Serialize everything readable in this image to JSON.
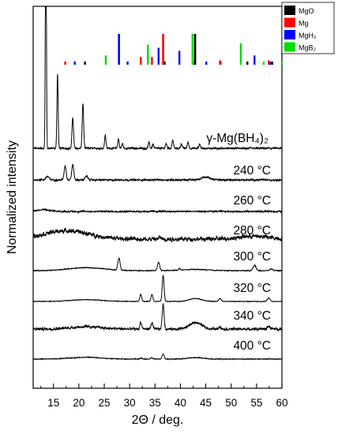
{
  "chart_data": {
    "type": "line",
    "xlabel": "2Θ / deg.",
    "ylabel": "Normalized intensity",
    "xlim": [
      11,
      60
    ],
    "xticks": [
      15,
      20,
      25,
      30,
      35,
      40,
      45,
      50,
      55,
      60
    ],
    "yticks": "none",
    "grid": false,
    "legend": {
      "placement": "top-right",
      "entries": [
        {
          "label": "MgO",
          "color": "#000000"
        },
        {
          "label": "Mg",
          "color": "#ff0000"
        },
        {
          "label": "MgH₂",
          "color": "#0000ff"
        },
        {
          "label": "MgB₂",
          "color": "#00dd00"
        }
      ]
    },
    "reference_peaks": [
      {
        "name": "MgO",
        "color": "#000000",
        "peaks": [
          [
            21.2,
            0.08
          ],
          [
            36.9,
            0.1
          ],
          [
            42.9,
            1.0
          ],
          [
            47.9,
            0.08
          ],
          [
            53.2,
            0.06
          ],
          [
            57.8,
            0.06
          ],
          [
            58.1,
            0.06
          ]
        ]
      },
      {
        "name": "Mg",
        "color": "#ff0000",
        "peaks": [
          [
            17.3,
            0.08
          ],
          [
            32.2,
            0.25
          ],
          [
            34.4,
            0.25
          ],
          [
            36.6,
            1.0
          ],
          [
            47.8,
            0.14
          ],
          [
            57.4,
            0.14
          ]
        ]
      },
      {
        "name": "MgH₂",
        "color": "#0000ff",
        "peaks": [
          [
            19.2,
            0.08
          ],
          [
            27.9,
            1.0
          ],
          [
            29.6,
            0.1
          ],
          [
            35.7,
            0.55
          ],
          [
            39.8,
            0.45
          ],
          [
            42.5,
            0.1
          ],
          [
            45.1,
            0.08
          ],
          [
            54.6,
            0.3
          ],
          [
            57.9,
            0.08
          ]
        ]
      },
      {
        "name": "MgB₂",
        "color": "#00dd00",
        "peaks": [
          [
            25.3,
            0.3
          ],
          [
            33.6,
            0.65
          ],
          [
            42.4,
            1.0
          ],
          [
            51.9,
            0.7
          ],
          [
            56.4,
            0.08
          ],
          [
            60.0,
            0.1
          ]
        ]
      }
    ],
    "series": [
      {
        "name": "γ-Mg(BH₄)₂",
        "label": "γ-Mg(BH₄)₂",
        "baseline": 0.0,
        "noise": 0.08,
        "peaks": [
          [
            13.5,
            0.1,
            22
          ],
          [
            15.8,
            0.12,
            6.3
          ],
          [
            18.8,
            0.15,
            2.6
          ],
          [
            20.8,
            0.14,
            3.8
          ],
          [
            25.2,
            0.14,
            1.1
          ],
          [
            27.8,
            0.14,
            0.8
          ],
          [
            28.6,
            0.14,
            0.4
          ],
          [
            33.8,
            0.14,
            0.5
          ],
          [
            34.6,
            0.14,
            0.35
          ],
          [
            37.2,
            0.15,
            0.4
          ],
          [
            38.5,
            0.15,
            0.7
          ],
          [
            40.2,
            0.15,
            0.4
          ],
          [
            41.5,
            0.15,
            0.5
          ],
          [
            43.8,
            0.15,
            0.35
          ]
        ]
      },
      {
        "name": "240 °C",
        "label": "240 °C",
        "baseline": 0.0,
        "noise": 0.08,
        "peaks": [
          [
            17.3,
            0.2,
            1.2
          ],
          [
            18.8,
            0.2,
            1.3
          ],
          [
            13.8,
            0.3,
            0.3
          ],
          [
            21.5,
            0.3,
            0.3
          ],
          [
            45.0,
            0.8,
            0.25
          ]
        ]
      },
      {
        "name": "260 °C",
        "label": "260 °C",
        "baseline": 0.0,
        "noise": 0.07,
        "peaks": [
          [
            13.0,
            1.2,
            0.15
          ]
        ]
      },
      {
        "name": "280 °C",
        "label": "280 °C",
        "baseline": 0.0,
        "noise": 0.22,
        "peaks": [
          [
            17.5,
            4.5,
            0.7
          ],
          [
            36.0,
            0.25,
            0.15
          ],
          [
            54.5,
            3.0,
            0.25
          ]
        ]
      },
      {
        "name": "300 °C",
        "label": "300 °C",
        "baseline": 0.0,
        "noise": 0.04,
        "peaks": [
          [
            27.9,
            0.22,
            1.0
          ],
          [
            35.7,
            0.22,
            0.7
          ],
          [
            39.8,
            0.22,
            0.12
          ],
          [
            54.6,
            0.3,
            0.45
          ],
          [
            57.9,
            0.3,
            0.15
          ],
          [
            21.5,
            3.5,
            0.25
          ],
          [
            43.0,
            2.5,
            0.1
          ]
        ]
      },
      {
        "name": "320 °C",
        "label": "320 °C",
        "baseline": 0.0,
        "noise": 0.03,
        "peaks": [
          [
            32.2,
            0.18,
            0.6
          ],
          [
            34.4,
            0.18,
            0.6
          ],
          [
            36.6,
            0.18,
            2.2
          ],
          [
            47.8,
            0.25,
            0.25
          ],
          [
            57.4,
            0.25,
            0.3
          ],
          [
            21.5,
            3.0,
            0.15
          ],
          [
            43.0,
            1.2,
            0.25
          ]
        ]
      },
      {
        "name": "340 °C",
        "label": "340 °C",
        "baseline": 0.0,
        "noise": 0.12,
        "peaks": [
          [
            32.2,
            0.18,
            0.55
          ],
          [
            34.4,
            0.18,
            0.55
          ],
          [
            36.6,
            0.18,
            2.1
          ],
          [
            47.8,
            0.25,
            0.2
          ],
          [
            57.4,
            0.25,
            0.25
          ],
          [
            21.5,
            3.0,
            0.2
          ],
          [
            43.0,
            1.2,
            0.55
          ]
        ]
      },
      {
        "name": "400 °C",
        "label": "400 °C",
        "baseline": 0.0,
        "noise": 0.04,
        "peaks": [
          [
            36.6,
            0.2,
            0.45
          ],
          [
            34.4,
            0.2,
            0.1
          ],
          [
            32.2,
            0.2,
            0.08
          ],
          [
            21.5,
            3.0,
            0.15
          ],
          [
            43.0,
            1.5,
            0.12
          ]
        ]
      }
    ]
  }
}
